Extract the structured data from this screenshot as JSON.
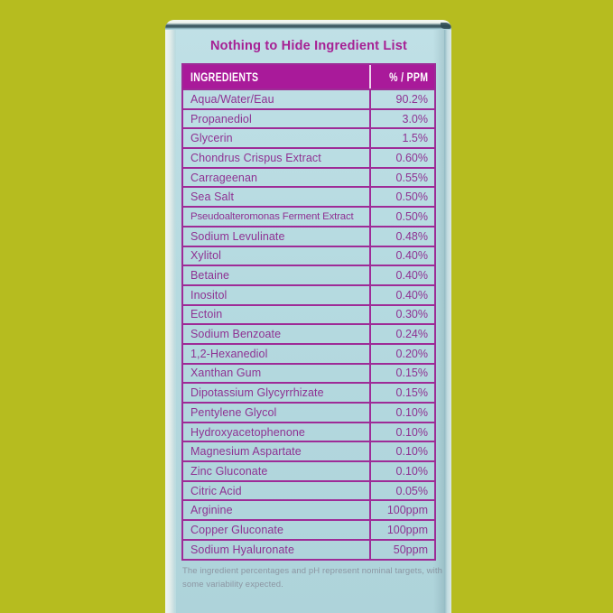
{
  "panel": {
    "title": "Nothing to Hide Ingredient List",
    "footnote": "The ingredient percentages and pH represent nominal targets, with some variability expected."
  },
  "table": {
    "headers": [
      "INGREDIENTS",
      "% / PPM"
    ],
    "rows": [
      {
        "name": "Aqua/Water/Eau",
        "value": "90.2%"
      },
      {
        "name": "Propanediol",
        "value": "3.0%"
      },
      {
        "name": "Glycerin",
        "value": "1.5%"
      },
      {
        "name": "Chondrus Crispus Extract",
        "value": "0.60%"
      },
      {
        "name": "Carrageenan",
        "value": "0.55%"
      },
      {
        "name": "Sea Salt",
        "value": "0.50%"
      },
      {
        "name": "Pseudoalteromonas Ferment Extract",
        "value": "0.50%"
      },
      {
        "name": "Sodium Levulinate",
        "value": "0.48%"
      },
      {
        "name": "Xylitol",
        "value": "0.40%"
      },
      {
        "name": "Betaine",
        "value": "0.40%"
      },
      {
        "name": "Inositol",
        "value": "0.40%"
      },
      {
        "name": "Ectoin",
        "value": "0.30%"
      },
      {
        "name": "Sodium Benzoate",
        "value": "0.24%"
      },
      {
        "name": "1,2-Hexanediol",
        "value": "0.20%"
      },
      {
        "name": "Xanthan Gum",
        "value": "0.15%"
      },
      {
        "name": "Dipotassium Glycyrrhizate",
        "value": "0.15%"
      },
      {
        "name": "Pentylene Glycol",
        "value": "0.10%"
      },
      {
        "name": "Hydroxyacetophenone",
        "value": "0.10%"
      },
      {
        "name": "Magnesium Aspartate",
        "value": "0.10%"
      },
      {
        "name": "Zinc Gluconate",
        "value": "0.10%"
      },
      {
        "name": "Citric Acid",
        "value": "0.05%"
      },
      {
        "name": "Arginine",
        "value": "100ppm"
      },
      {
        "name": "Copper Gluconate",
        "value": "100ppm"
      },
      {
        "name": "Sodium Hyaluronate",
        "value": "50ppm"
      }
    ]
  },
  "colors": {
    "background": "#b6bc1f",
    "box_face": "#b5dae0",
    "header_bg": "#a91a9a",
    "table_border": "#9e2b97",
    "row_text": "#8e3192",
    "title_text": "#a62094",
    "header_text": "#ffffff",
    "footnote_text": "#8c96a2"
  }
}
